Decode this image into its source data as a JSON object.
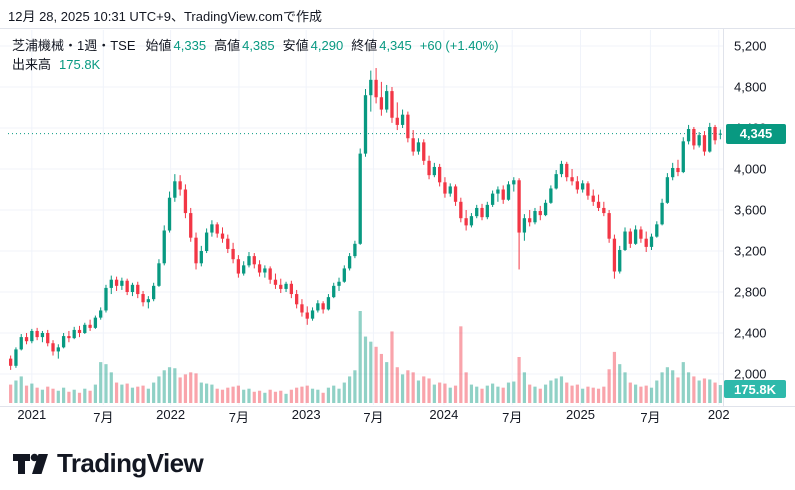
{
  "attribution": "12月 28, 2025 10:31 UTC+9、TradingView.comで作成",
  "legend": {
    "title": "芝浦機械・1週・TSE",
    "fields": [
      {
        "label": "始値",
        "value": "4,335"
      },
      {
        "label": "高値",
        "value": "4,385"
      },
      {
        "label": "安値",
        "value": "4,290"
      },
      {
        "label": "終値",
        "value": "4,345"
      }
    ],
    "change": "+60 (+1.40%)",
    "volume_label": "出来高",
    "volume_value": "175.8K"
  },
  "last_price_label": "4,345",
  "last_volume_label": "175.8K",
  "logo_text": "TradingView",
  "colors": {
    "up": "#089981",
    "down": "#f23645",
    "vol_up": "rgba(8,153,129,0.45)",
    "vol_down": "rgba(242,54,69,0.45)",
    "grid": "#f0f3fa",
    "axis_line": "#e0e3eb",
    "text": "#131722",
    "accent": "#089981",
    "volume_badge_bg": "#2eb9ab"
  },
  "price_scale": {
    "tick_values": [
      5200,
      4800,
      4400,
      4000,
      3600,
      3200,
      2800,
      2400,
      2000
    ],
    "tick_labels": [
      "5,200",
      "4,800",
      "4,400",
      "4,000",
      "3,600",
      "3,200",
      "2,800",
      "2,400",
      "2,000"
    ]
  },
  "time_scale": {
    "ticks": [
      {
        "label": "2021",
        "pos": 4.0
      },
      {
        "label": "7月",
        "pos": 17.5
      },
      {
        "label": "2022",
        "pos": 30.2
      },
      {
        "label": "7月",
        "pos": 43.1
      },
      {
        "label": "2023",
        "pos": 55.8
      },
      {
        "label": "7月",
        "pos": 68.5
      },
      {
        "label": "2024",
        "pos": 81.8
      },
      {
        "label": "7月",
        "pos": 94.7
      },
      {
        "label": "2025",
        "pos": 107.6
      },
      {
        "label": "7月",
        "pos": 120.8
      },
      {
        "label": "202",
        "pos": 133.7
      }
    ]
  },
  "chart_data": {
    "type": "candlestick",
    "symbol": "芝浦機械",
    "interval": "1週",
    "exchange": "TSE",
    "title": "芝浦機械・1週・TSE",
    "y_range": [
      2000,
      5200
    ],
    "last": {
      "open": 4335,
      "high": 4385,
      "low": 4290,
      "close": 4345,
      "change": 60,
      "change_pct": 1.4,
      "volume_k": 175.8
    },
    "volume_unit": "K",
    "ohlcv_note": "columns: open, high, low, close, volume(K); weekly bars late-2020 through Dec 2025 (values estimated from chart)",
    "ohlcv": [
      [
        2150,
        2180,
        2040,
        2080,
        180
      ],
      [
        2080,
        2260,
        2060,
        2240,
        220
      ],
      [
        2240,
        2390,
        2230,
        2360,
        260
      ],
      [
        2360,
        2400,
        2290,
        2320,
        170
      ],
      [
        2320,
        2440,
        2300,
        2420,
        190
      ],
      [
        2420,
        2450,
        2330,
        2360,
        150
      ],
      [
        2360,
        2420,
        2310,
        2400,
        130
      ],
      [
        2400,
        2430,
        2270,
        2300,
        160
      ],
      [
        2300,
        2330,
        2180,
        2220,
        140
      ],
      [
        2220,
        2290,
        2150,
        2260,
        120
      ],
      [
        2260,
        2400,
        2250,
        2370,
        150
      ],
      [
        2370,
        2420,
        2310,
        2350,
        110
      ],
      [
        2350,
        2460,
        2340,
        2430,
        130
      ],
      [
        2430,
        2470,
        2360,
        2400,
        100
      ],
      [
        2400,
        2500,
        2390,
        2480,
        140
      ],
      [
        2480,
        2530,
        2420,
        2450,
        120
      ],
      [
        2450,
        2570,
        2440,
        2550,
        180
      ],
      [
        2550,
        2650,
        2530,
        2620,
        400
      ],
      [
        2620,
        2870,
        2600,
        2840,
        380
      ],
      [
        2840,
        2960,
        2780,
        2920,
        300
      ],
      [
        2920,
        2950,
        2810,
        2860,
        200
      ],
      [
        2860,
        2940,
        2820,
        2910,
        180
      ],
      [
        2910,
        2930,
        2770,
        2800,
        190
      ],
      [
        2800,
        2890,
        2760,
        2870,
        150
      ],
      [
        2870,
        2900,
        2740,
        2780,
        160
      ],
      [
        2780,
        2810,
        2660,
        2700,
        170
      ],
      [
        2700,
        2760,
        2640,
        2730,
        140
      ],
      [
        2730,
        2890,
        2710,
        2860,
        200
      ],
      [
        2860,
        3120,
        2850,
        3080,
        260
      ],
      [
        3080,
        3450,
        3060,
        3400,
        320
      ],
      [
        3400,
        3780,
        3380,
        3720,
        350
      ],
      [
        3720,
        3950,
        3680,
        3880,
        340
      ],
      [
        3880,
        3940,
        3740,
        3800,
        250
      ],
      [
        3800,
        3850,
        3520,
        3570,
        280
      ],
      [
        3570,
        3620,
        3290,
        3330,
        300
      ],
      [
        3330,
        3380,
        3020,
        3080,
        290
      ],
      [
        3080,
        3250,
        3050,
        3200,
        200
      ],
      [
        3200,
        3420,
        3180,
        3380,
        190
      ],
      [
        3380,
        3500,
        3340,
        3460,
        180
      ],
      [
        3460,
        3480,
        3330,
        3370,
        140
      ],
      [
        3370,
        3430,
        3280,
        3320,
        130
      ],
      [
        3320,
        3360,
        3180,
        3220,
        150
      ],
      [
        3220,
        3280,
        3080,
        3120,
        160
      ],
      [
        3120,
        3160,
        2940,
        2980,
        170
      ],
      [
        2980,
        3100,
        2960,
        3060,
        130
      ],
      [
        3060,
        3190,
        3040,
        3150,
        140
      ],
      [
        3150,
        3180,
        3030,
        3070,
        110
      ],
      [
        3070,
        3110,
        2950,
        2990,
        120
      ],
      [
        2990,
        3060,
        2940,
        3030,
        100
      ],
      [
        3030,
        3050,
        2880,
        2920,
        130
      ],
      [
        2920,
        2980,
        2830,
        2870,
        110
      ],
      [
        2870,
        2930,
        2790,
        2830,
        120
      ],
      [
        2830,
        2900,
        2800,
        2880,
        90
      ],
      [
        2880,
        2910,
        2740,
        2780,
        130
      ],
      [
        2780,
        2820,
        2640,
        2680,
        150
      ],
      [
        2680,
        2730,
        2560,
        2600,
        160
      ],
      [
        2600,
        2660,
        2480,
        2540,
        170
      ],
      [
        2540,
        2650,
        2520,
        2620,
        140
      ],
      [
        2620,
        2720,
        2600,
        2690,
        130
      ],
      [
        2690,
        2710,
        2590,
        2630,
        100
      ],
      [
        2630,
        2780,
        2620,
        2750,
        150
      ],
      [
        2750,
        2890,
        2740,
        2860,
        170
      ],
      [
        2860,
        2940,
        2810,
        2900,
        140
      ],
      [
        2900,
        3060,
        2890,
        3030,
        200
      ],
      [
        3030,
        3180,
        3010,
        3150,
        260
      ],
      [
        3150,
        3300,
        3130,
        3270,
        320
      ],
      [
        3270,
        4200,
        3260,
        4150,
        900
      ],
      [
        4150,
        4780,
        4120,
        4720,
        650
      ],
      [
        4720,
        4960,
        4560,
        4870,
        600
      ],
      [
        4870,
        4985,
        4640,
        4700,
        550
      ],
      [
        4700,
        4850,
        4520,
        4580,
        480
      ],
      [
        4580,
        4820,
        4550,
        4760,
        400
      ],
      [
        4760,
        4800,
        4450,
        4500,
        700
      ],
      [
        4500,
        4650,
        4380,
        4430,
        350
      ],
      [
        4430,
        4580,
        4400,
        4530,
        280
      ],
      [
        4530,
        4560,
        4260,
        4300,
        320
      ],
      [
        4300,
        4380,
        4130,
        4170,
        300
      ],
      [
        4170,
        4300,
        4140,
        4260,
        220
      ],
      [
        4260,
        4290,
        4040,
        4080,
        260
      ],
      [
        4080,
        4130,
        3900,
        3940,
        240
      ],
      [
        3940,
        4060,
        3920,
        4020,
        180
      ],
      [
        4020,
        4050,
        3830,
        3870,
        200
      ],
      [
        3870,
        3920,
        3720,
        3760,
        190
      ],
      [
        3760,
        3860,
        3730,
        3830,
        150
      ],
      [
        3830,
        3850,
        3640,
        3680,
        170
      ],
      [
        3680,
        3720,
        3480,
        3520,
        750
      ],
      [
        3520,
        3600,
        3400,
        3450,
        300
      ],
      [
        3450,
        3570,
        3430,
        3540,
        180
      ],
      [
        3540,
        3650,
        3520,
        3620,
        160
      ],
      [
        3620,
        3660,
        3500,
        3530,
        140
      ],
      [
        3530,
        3680,
        3510,
        3650,
        170
      ],
      [
        3650,
        3790,
        3630,
        3760,
        190
      ],
      [
        3760,
        3830,
        3680,
        3800,
        160
      ],
      [
        3800,
        3840,
        3660,
        3700,
        150
      ],
      [
        3700,
        3880,
        3690,
        3850,
        200
      ],
      [
        3850,
        3920,
        3780,
        3890,
        210
      ],
      [
        3890,
        3910,
        3020,
        3380,
        450
      ],
      [
        3380,
        3560,
        3300,
        3520,
        300
      ],
      [
        3520,
        3600,
        3440,
        3480,
        180
      ],
      [
        3480,
        3620,
        3460,
        3590,
        160
      ],
      [
        3590,
        3640,
        3500,
        3550,
        140
      ],
      [
        3550,
        3700,
        3540,
        3670,
        180
      ],
      [
        3670,
        3840,
        3660,
        3810,
        220
      ],
      [
        3810,
        3990,
        3800,
        3950,
        240
      ],
      [
        3950,
        4080,
        3920,
        4050,
        260
      ],
      [
        4050,
        4070,
        3880,
        3920,
        200
      ],
      [
        3920,
        4000,
        3840,
        3880,
        170
      ],
      [
        3880,
        3930,
        3760,
        3800,
        180
      ],
      [
        3800,
        3890,
        3770,
        3860,
        140
      ],
      [
        3860,
        3880,
        3700,
        3740,
        160
      ],
      [
        3740,
        3800,
        3640,
        3680,
        150
      ],
      [
        3680,
        3750,
        3590,
        3620,
        140
      ],
      [
        3620,
        3680,
        3540,
        3570,
        160
      ],
      [
        3570,
        3600,
        3280,
        3320,
        330
      ],
      [
        3320,
        3360,
        2930,
        3000,
        500
      ],
      [
        3000,
        3250,
        2980,
        3210,
        380
      ],
      [
        3210,
        3430,
        3200,
        3390,
        300
      ],
      [
        3390,
        3420,
        3230,
        3270,
        200
      ],
      [
        3270,
        3450,
        3260,
        3410,
        180
      ],
      [
        3410,
        3440,
        3280,
        3320,
        160
      ],
      [
        3320,
        3390,
        3190,
        3240,
        170
      ],
      [
        3240,
        3370,
        3210,
        3340,
        150
      ],
      [
        3340,
        3490,
        3330,
        3460,
        220
      ],
      [
        3460,
        3710,
        3450,
        3670,
        300
      ],
      [
        3670,
        3960,
        3660,
        3920,
        350
      ],
      [
        3920,
        4060,
        3890,
        4010,
        320
      ],
      [
        4010,
        4090,
        3930,
        3970,
        250
      ],
      [
        3970,
        4310,
        3960,
        4270,
        400
      ],
      [
        4270,
        4430,
        4240,
        4390,
        300
      ],
      [
        4390,
        4410,
        4190,
        4230,
        260
      ],
      [
        4230,
        4360,
        4210,
        4330,
        220
      ],
      [
        4330,
        4370,
        4130,
        4170,
        240
      ],
      [
        4170,
        4450,
        4160,
        4410,
        230
      ],
      [
        4410,
        4430,
        4240,
        4280,
        200
      ],
      [
        4335,
        4385,
        4290,
        4345,
        175.8
      ]
    ]
  }
}
